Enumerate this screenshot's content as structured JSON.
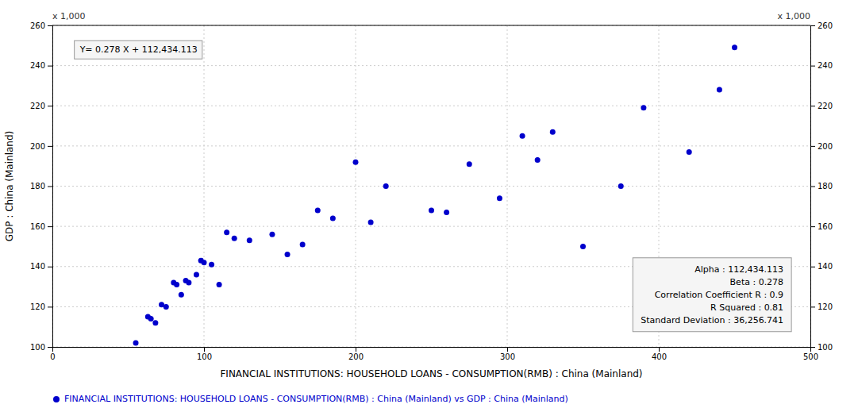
{
  "chart_data": {
    "type": "scatter",
    "x_label": "FINANCIAL INSTITUTIONS: HOUSEHOLD LOANS - CONSUMPTION(RMB) : China (Mainland)",
    "y_label": "GDP : China (Mainland)",
    "series": [
      {
        "name": "FINANCIAL INSTITUTIONS: HOUSEHOLD LOANS - CONSUMPTION(RMB) : China (Mainland) vs GDP : China (Mainland)",
        "color": "#0000cc",
        "x": [
          55,
          63,
          65,
          68,
          72,
          75,
          80,
          82,
          85,
          88,
          90,
          95,
          98,
          100,
          105,
          110,
          115,
          120,
          130,
          145,
          155,
          165,
          175,
          185,
          200,
          210,
          220,
          250,
          260,
          275,
          295,
          310,
          320,
          330,
          350,
          375,
          390,
          420,
          440,
          450
        ],
        "values": [
          102,
          115,
          114,
          112,
          121,
          120,
          132,
          131,
          126,
          133,
          132,
          136,
          143,
          142,
          141,
          131,
          157,
          154,
          153,
          156,
          146,
          151,
          168,
          164,
          192,
          162,
          180,
          168,
          167,
          191,
          174,
          205,
          193,
          207,
          150,
          180,
          219,
          197,
          228,
          249
        ]
      }
    ],
    "xlim": [
      0,
      500
    ],
    "ylim": [
      100,
      260
    ],
    "xticks": [
      0,
      100,
      200,
      300,
      400,
      500
    ],
    "yticks": [
      100,
      120,
      140,
      160,
      180,
      200,
      220,
      240,
      260
    ],
    "y2lim": [
      100,
      260
    ],
    "y2ticks": [
      100,
      120,
      140,
      160,
      180,
      200,
      220,
      240,
      260
    ],
    "grid": true,
    "legend": "bottom",
    "annotations": [
      "x 1,000",
      "x 1,000",
      "Y= 0.278 X + 112,434.113",
      "Alpha : 112,434.113\nBeta : 0.278\nCorrelation Coefficient R : 0.9\nR Squared : 0.81\nStandard Deviation : 36,256.741"
    ]
  }
}
